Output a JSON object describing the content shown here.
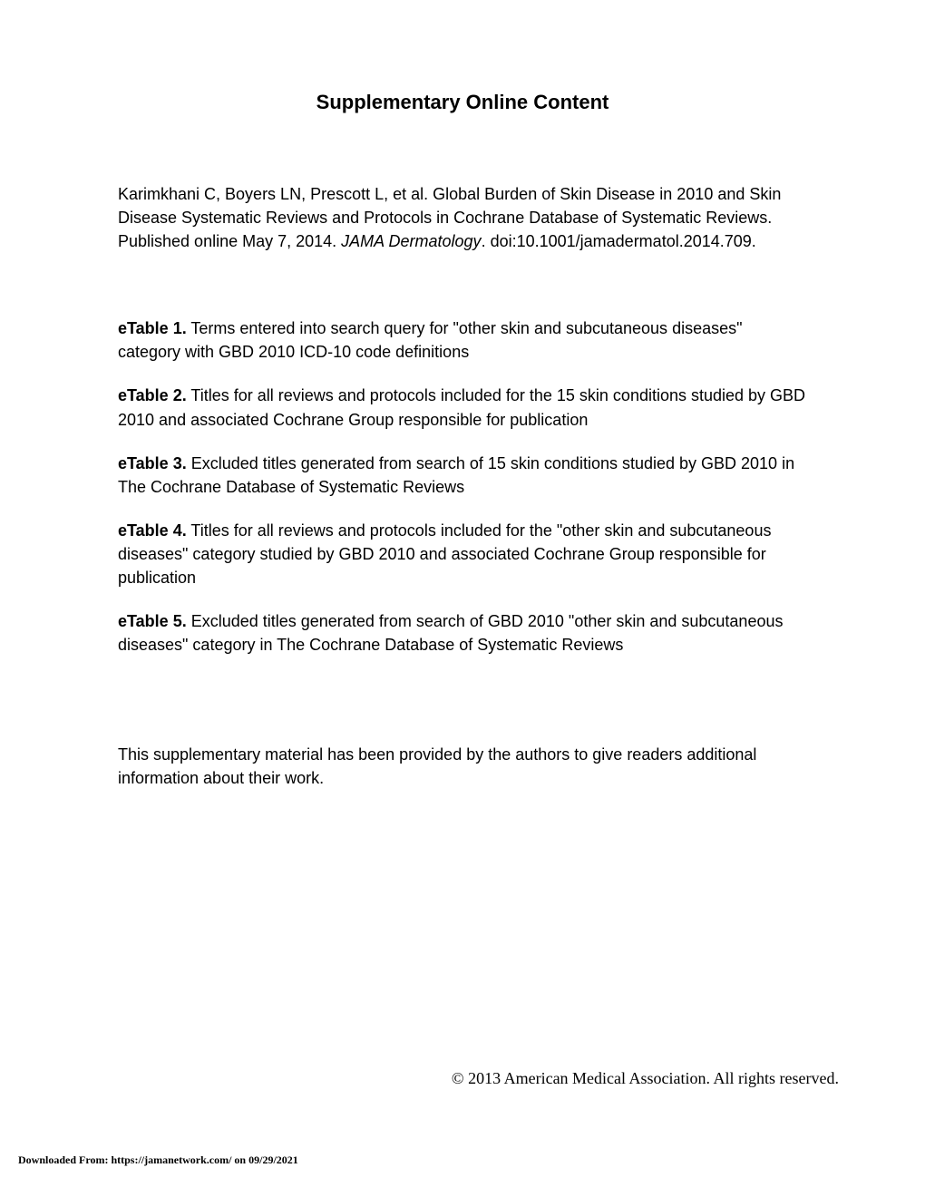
{
  "title": "Supplementary Online Content",
  "citation": {
    "authors": "Karimkhani C, Boyers LN, Prescott L, et al. Global Burden of Skin Disease in 2010 and Skin Disease Systematic Reviews and Protocols in Cochrane Database of Systematic Reviews. Published online May 7, 2014. ",
    "journal": "JAMA Dermatology",
    "doi": ". doi:10.1001/jamadermatol.2014.709."
  },
  "etables": [
    {
      "label": "eTable 1.",
      "description": " Terms entered into search query for \"other skin and subcutaneous diseases\" category with GBD 2010 ICD-10 code definitions"
    },
    {
      "label": "eTable 2.",
      "description": " Titles for all reviews and protocols included for the 15 skin conditions studied by GBD 2010 and associated Cochrane Group responsible for publication"
    },
    {
      "label": "eTable 3.",
      "description": " Excluded titles generated from search of 15 skin conditions studied by GBD 2010 in The Cochrane Database of Systematic Reviews"
    },
    {
      "label": "eTable 4.",
      "description": " Titles for all reviews and protocols included for the \"other skin and subcutaneous diseases\" category studied by GBD 2010 and associated Cochrane Group responsible for publication"
    },
    {
      "label": "eTable 5.",
      "description": " Excluded titles generated from search of GBD 2010 \"other skin and subcutaneous diseases\" category in The Cochrane Database of Systematic Reviews"
    }
  ],
  "supplementary_note": "This supplementary material has been provided by the authors to give readers additional information about their work.",
  "copyright": "© 2013 American Medical Association. All rights reserved.",
  "download_info": "Downloaded From: https://jamanetwork.com/ on 09/29/2021"
}
